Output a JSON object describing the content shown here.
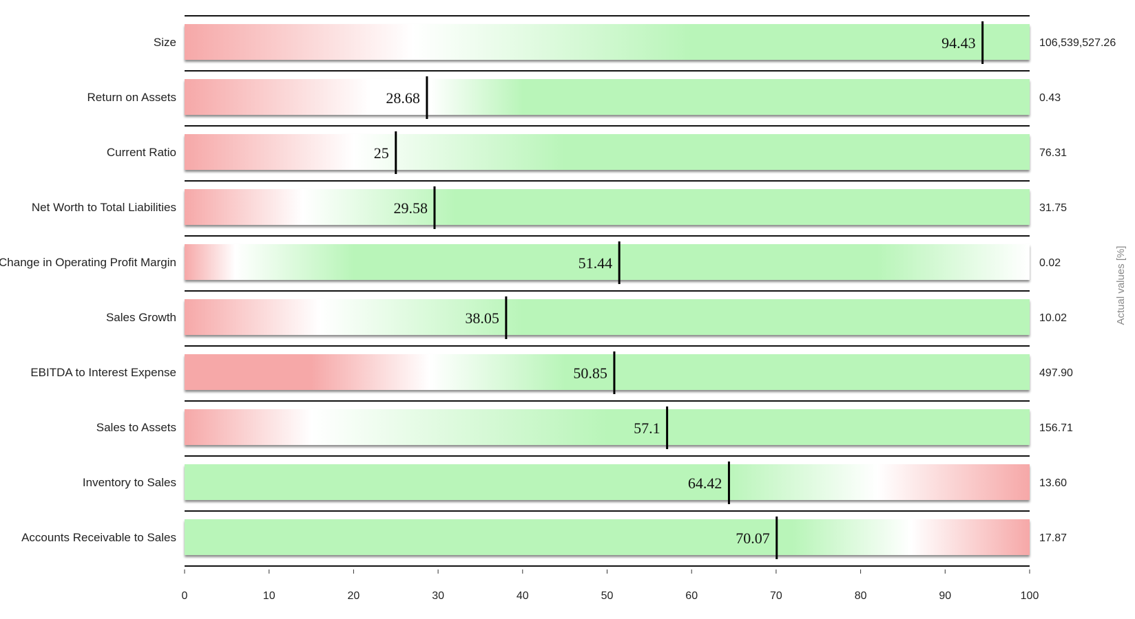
{
  "chart_data": {
    "type": "bar",
    "xlim": [
      0,
      100
    ],
    "xticks": [
      0,
      10,
      20,
      30,
      40,
      50,
      60,
      70,
      80,
      90,
      100
    ],
    "right_axis_title": "Actual values [%]",
    "colors": {
      "good": "#b9f5b9",
      "bad": "#f6a8a8",
      "neutral": "#ffffff",
      "marker": "#000000"
    },
    "rows": [
      {
        "label": "Size",
        "value": 94.43,
        "value_text": "94.43",
        "actual": "106,539,527.26",
        "gradient": [
          [
            0,
            "bad"
          ],
          [
            0.27,
            "neutral"
          ],
          [
            0.6,
            "good"
          ],
          [
            1,
            "good"
          ]
        ]
      },
      {
        "label": "Return on Assets",
        "value": 28.68,
        "value_text": "28.68",
        "actual": "0.43",
        "gradient": [
          [
            0,
            "bad"
          ],
          [
            0.22,
            "neutral"
          ],
          [
            0.29,
            "neutral"
          ],
          [
            0.4,
            "good"
          ],
          [
            1,
            "good"
          ]
        ]
      },
      {
        "label": "Current Ratio",
        "value": 25,
        "value_text": "25",
        "actual": "76.31",
        "gradient": [
          [
            0,
            "bad"
          ],
          [
            0.2,
            "neutral"
          ],
          [
            0.45,
            "good"
          ],
          [
            1,
            "good"
          ]
        ]
      },
      {
        "label": "Net Worth to Total Liabilities",
        "value": 29.58,
        "value_text": "29.58",
        "actual": "31.75",
        "gradient": [
          [
            0,
            "bad"
          ],
          [
            0.14,
            "neutral"
          ],
          [
            0.32,
            "good"
          ],
          [
            1,
            "good"
          ]
        ]
      },
      {
        "label": "Change in Operating Profit Margin",
        "value": 51.44,
        "value_text": "51.44",
        "actual": "0.02",
        "gradient": [
          [
            0,
            "bad"
          ],
          [
            0.06,
            "neutral"
          ],
          [
            0.2,
            "good"
          ],
          [
            0.82,
            "good"
          ],
          [
            1,
            "neutral"
          ]
        ]
      },
      {
        "label": "Sales Growth",
        "value": 38.05,
        "value_text": "38.05",
        "actual": "10.02",
        "gradient": [
          [
            0,
            "bad"
          ],
          [
            0.16,
            "neutral"
          ],
          [
            0.4,
            "good"
          ],
          [
            1,
            "good"
          ]
        ]
      },
      {
        "label": "EBITDA to Interest Expense",
        "value": 50.85,
        "value_text": "50.85",
        "actual": "497.90",
        "gradient": [
          [
            0,
            "bad"
          ],
          [
            0.15,
            "bad"
          ],
          [
            0.29,
            "neutral"
          ],
          [
            0.45,
            "good"
          ],
          [
            1,
            "good"
          ]
        ]
      },
      {
        "label": "Sales to Assets",
        "value": 57.1,
        "value_text": "57.1",
        "actual": "156.71",
        "gradient": [
          [
            0,
            "bad"
          ],
          [
            0.15,
            "neutral"
          ],
          [
            0.5,
            "good"
          ],
          [
            1,
            "good"
          ]
        ]
      },
      {
        "label": "Inventory to Sales",
        "value": 64.42,
        "value_text": "64.42",
        "actual": "13.60",
        "gradient": [
          [
            0,
            "good"
          ],
          [
            0.64,
            "good"
          ],
          [
            0.82,
            "neutral"
          ],
          [
            1,
            "bad"
          ]
        ]
      },
      {
        "label": "Accounts Receivable to Sales",
        "value": 70.07,
        "value_text": "70.07",
        "actual": "17.87",
        "gradient": [
          [
            0,
            "good"
          ],
          [
            0.72,
            "good"
          ],
          [
            0.86,
            "neutral"
          ],
          [
            1,
            "bad"
          ]
        ]
      }
    ]
  }
}
